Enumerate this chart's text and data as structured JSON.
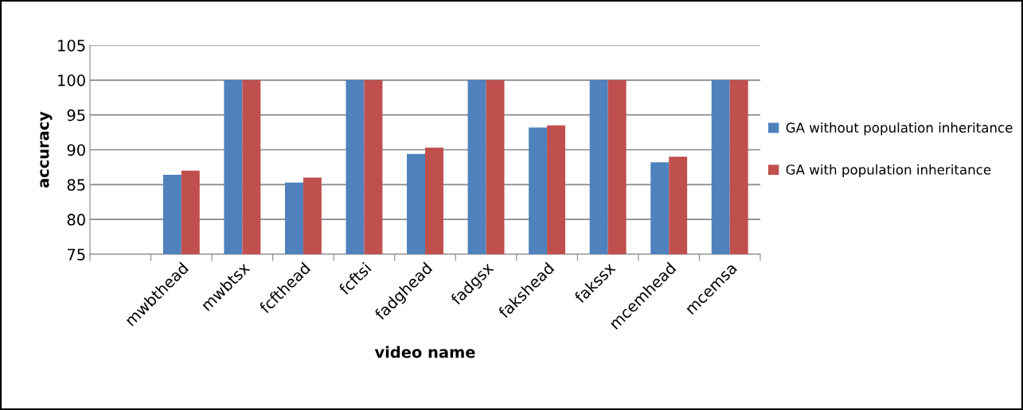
{
  "chart_data": {
    "type": "bar",
    "xlabel": "video name",
    "ylabel": "accuracy",
    "categories": [
      null,
      "mwbthead",
      "mwbtsx",
      "fcfthead",
      "fcftsi",
      "fadghead",
      "fadgsx",
      "fakshead",
      "fakssx",
      "mcemhead",
      "mcemsa"
    ],
    "series": [
      {
        "name": "GA without population inheritance",
        "color": "#4f81bd",
        "values": [
          null,
          86.4,
          100,
          85.3,
          100,
          89.4,
          100,
          93.2,
          100,
          88.2,
          100
        ]
      },
      {
        "name": "GA with population inheritance",
        "color": "#c0504d",
        "values": [
          null,
          87.0,
          100,
          86.0,
          100,
          90.3,
          100,
          93.5,
          100,
          89.0,
          100
        ]
      }
    ],
    "ylim": [
      75,
      105
    ],
    "yticks": [
      75,
      80,
      85,
      90,
      95,
      100,
      105
    ],
    "grid": "y",
    "legend": "right"
  }
}
